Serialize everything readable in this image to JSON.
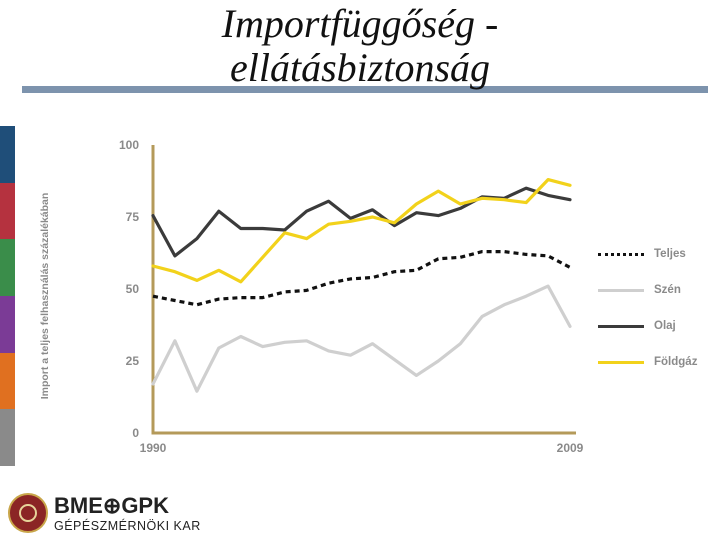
{
  "page": {
    "title_line1": "Importfüggőség -",
    "title_line2": "ellátásbiztonság",
    "side_colors": [
      "#1f4e79",
      "#b5323f",
      "#3a8d4a",
      "#7b3b96",
      "#e07020",
      "#8a8a8a"
    ],
    "title_rule_color": "#7d93ad"
  },
  "logo": {
    "main_text": "BME⊕GPK",
    "sub_text": "GÉPÉSZMÉRNÖKI KAR",
    "seal_color": "#8b2525"
  },
  "chart_data": {
    "type": "line",
    "title": "",
    "xlabel": "",
    "ylabel": "Import a teljes felhasználás százalékában",
    "x": [
      1990,
      1991,
      1992,
      1993,
      1994,
      1995,
      1996,
      1997,
      1998,
      1999,
      2000,
      2001,
      2002,
      2003,
      2004,
      2005,
      2006,
      2007,
      2008,
      2009
    ],
    "x_tick_labels": [
      "1990",
      "2009"
    ],
    "ylim": [
      0,
      100
    ],
    "y_ticks": [
      0,
      25,
      50,
      75,
      100
    ],
    "grid": false,
    "legend_position": "right",
    "series": [
      {
        "name": "Teljes",
        "style": "dotted",
        "color": "#111111",
        "values": [
          47.5,
          46,
          44.5,
          46.5,
          47,
          47,
          49,
          49.5,
          52,
          53.5,
          54,
          56,
          56.5,
          60.5,
          61,
          63,
          63,
          62,
          61.5,
          57.5
        ]
      },
      {
        "name": "Szén",
        "style": "solid",
        "color": "#cfcfcf",
        "values": [
          17,
          32,
          14.5,
          29.5,
          33.5,
          30,
          31.5,
          32,
          28.5,
          27,
          31,
          25.5,
          20,
          25,
          31,
          40.5,
          44.5,
          47.5,
          51,
          37
        ]
      },
      {
        "name": "Olaj",
        "style": "solid",
        "color": "#3b3b3b",
        "values": [
          75.5,
          61.5,
          67.5,
          77,
          71,
          71,
          70.5,
          77,
          80.5,
          74.5,
          77.5,
          72,
          76.5,
          75.5,
          78,
          82,
          81.5,
          85,
          82.5,
          81
        ]
      },
      {
        "name": "Földgáz",
        "style": "solid",
        "color": "#f2d21b",
        "values": [
          58,
          56,
          53,
          56.5,
          52.5,
          61,
          69.5,
          67.5,
          72.5,
          73.5,
          75,
          73,
          79.5,
          84,
          79.5,
          81.5,
          81,
          80,
          88,
          86
        ]
      }
    ]
  }
}
